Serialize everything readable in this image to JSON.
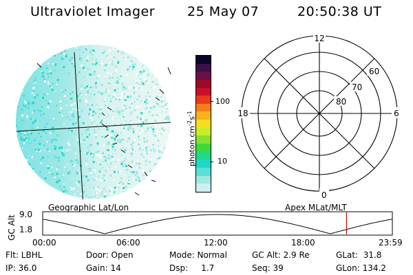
{
  "header": {
    "instrument": "Ultraviolet Imager",
    "date": "25 May 07",
    "time": "20:50:38 UT"
  },
  "colorbar": {
    "unit_label": "photon cm",
    "unit_sup1": "-2",
    "unit_s": "s",
    "unit_sup2": "-1",
    "ticks": [
      "100",
      "10"
    ],
    "colors": [
      "#0b0628",
      "#3a1046",
      "#6a1042",
      "#9a0a28",
      "#c8102a",
      "#e83a1e",
      "#f47c1a",
      "#f8b21c",
      "#f5de20",
      "#c8ec28",
      "#86e030",
      "#3ed838",
      "#20d88a",
      "#1ed8c8",
      "#5ae0d8",
      "#9ee8e4",
      "#cdf0ee"
    ]
  },
  "polar": {
    "mlt_labels": {
      "top": "12",
      "left": "18",
      "right": "6",
      "bottom": "0"
    },
    "lat_labels": [
      "60",
      "70",
      "80"
    ]
  },
  "timeline": {
    "left_title": "Geographic Lat/Lon",
    "right_title": "Apex MLat/MLT",
    "axis_label": "GC Alt",
    "ymax": "9.0",
    "ymin": "1.8",
    "xticks": [
      "00:00",
      "06:00",
      "12:00",
      "18:00",
      "23:59"
    ],
    "current_time_fraction": 0.869,
    "marker_color": "#cc0000"
  },
  "info": {
    "flt": "Flt: LBHL",
    "door": "Door: Open",
    "mode": "Mode: Normal",
    "gc_alt": "GC Alt: 2.9 Re",
    "glat": "GLat:  31.8",
    "ip": "IP: 36.0",
    "gain": "Gain: 14",
    "dsp": "Dsp:     1.7",
    "seq": "Seq: 39",
    "glon": "GLon: 134.2"
  }
}
